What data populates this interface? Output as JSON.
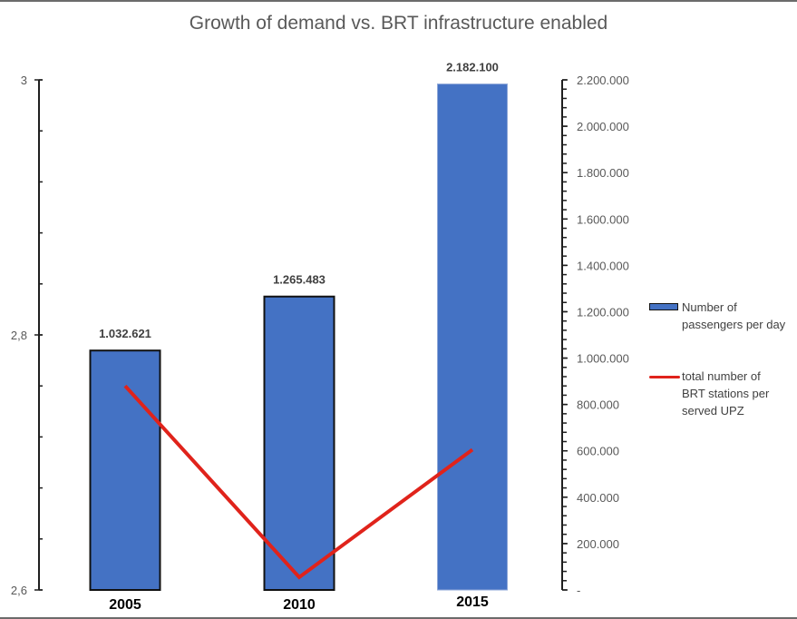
{
  "chart_data": {
    "type": "bar+line",
    "title": "Growth of demand vs. BRT infrastructure enabled",
    "categories": [
      "2005",
      "2010",
      "2015"
    ],
    "series": [
      {
        "name": "Number of passengers per day",
        "kind": "bar",
        "axis": "right",
        "values": [
          1032621,
          1265483,
          2182100
        ],
        "labels": [
          "1.032.621",
          "1.265.483",
          "2.182.100"
        ],
        "color": "#4472c4"
      },
      {
        "name": "total number of BRT stations per served UPZ",
        "kind": "line",
        "axis": "left",
        "values": [
          2.76,
          2.61,
          2.71
        ],
        "color": "#e0231b"
      }
    ],
    "left_axis": {
      "ylim": [
        2.6,
        3.0
      ],
      "ticks": [
        3.0,
        2.8,
        2.6
      ],
      "tick_labels": [
        "3",
        "2,8",
        "2,6"
      ],
      "minor_step": 0.04
    },
    "right_axis": {
      "ylim": [
        0,
        2200000
      ],
      "ticks": [
        2200000,
        2000000,
        1800000,
        1600000,
        1400000,
        1200000,
        1000000,
        800000,
        600000,
        400000,
        200000,
        0
      ],
      "tick_labels": [
        "2.200.000",
        "2.000.000",
        "1.800.000",
        "1.600.000",
        "1.400.000",
        "1.200.000",
        "1.000.000",
        "800.000",
        "600.000",
        "400.000",
        "200.000",
        "-"
      ],
      "minor_step": 40000
    },
    "legend": {
      "position": "right",
      "entries": [
        "Number of passengers per day",
        "total number of BRT stations per served UPZ"
      ]
    },
    "grid": false
  },
  "legend_lines": {
    "bar": [
      "Number of",
      "passengers per day"
    ],
    "line": [
      "total number of",
      "BRT stations per",
      "served UPZ"
    ]
  }
}
